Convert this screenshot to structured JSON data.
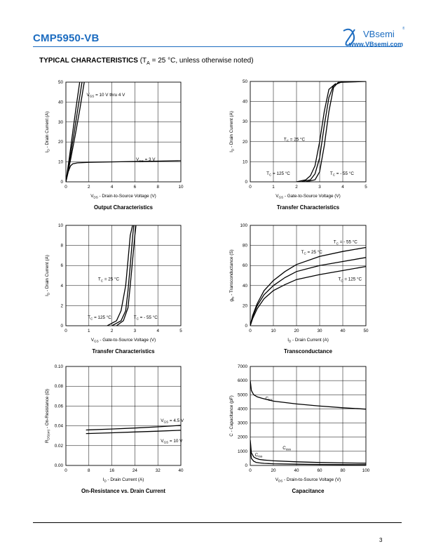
{
  "header": {
    "part_number": "CMP5950-VB",
    "logo_brand": "VBsemi",
    "logo_url": "www.VBsemi.com"
  },
  "section": {
    "title": "TYPICAL CHARACTERISTICS",
    "condition_open": " (T",
    "condition_sub": "A",
    "condition_rest": " = 25 °C, unless otherwise noted)"
  },
  "page_number": "3",
  "chart_data": [
    {
      "id": "output",
      "type": "line",
      "title": "Output Characteristics",
      "xlabel": "V_DS - Drain-to-Source Voltage (V)",
      "ylabel": "I_D - Drain Current (A)",
      "xlim": [
        0,
        10
      ],
      "ylim": [
        0,
        50
      ],
      "xticks": [
        "0",
        "2",
        "4",
        "6",
        "8",
        "10"
      ],
      "yticks": [
        "0",
        "10",
        "20",
        "30",
        "40",
        "50"
      ],
      "grid": true,
      "series": [
        {
          "name": "V_GS = 10 V thru 4 V",
          "x": [
            0,
            0.3,
            0.6,
            0.9,
            1.2
          ],
          "y": [
            0,
            12,
            25,
            38,
            50
          ]
        },
        {
          "name": "V_GS = 10 V thru 4 V",
          "x": [
            0,
            0.35,
            0.7,
            1.05,
            1.4
          ],
          "y": [
            0,
            11.5,
            24,
            37,
            50
          ]
        },
        {
          "name": "V_GS = 10 V thru 4 V",
          "x": [
            0,
            0.4,
            0.8,
            1.2,
            1.6
          ],
          "y": [
            0,
            11,
            23,
            36,
            50
          ]
        },
        {
          "name": "V_GS = 3 V",
          "x": [
            0,
            0.2,
            0.4,
            0.6,
            1,
            2,
            4,
            6,
            8,
            10
          ],
          "y": [
            0,
            5,
            8,
            9,
            9.5,
            9.8,
            10,
            10.2,
            10.4,
            10.6
          ]
        }
      ],
      "annotations": [
        {
          "text_main": "V",
          "text_sub": "GS",
          "text_rest": " = 10 V thru 4 V",
          "x": 1.8,
          "y": 43
        },
        {
          "text_main": "V",
          "text_sub": "GS",
          "text_rest": " = 3 V",
          "x": 6.1,
          "y": 10.5
        }
      ]
    },
    {
      "id": "transfer1",
      "type": "line",
      "title": "Transfer Characteristics",
      "xlabel": "V_GS - Gate-to-Source Voltage (V)",
      "ylabel": "I_D - Drain Current (A)",
      "xlim": [
        0,
        5
      ],
      "ylim": [
        0,
        50
      ],
      "xticks": [
        "0",
        "1",
        "2",
        "3",
        "4",
        "5"
      ],
      "yticks": [
        "0",
        "10",
        "20",
        "30",
        "40",
        "50"
      ],
      "grid": true,
      "series": [
        {
          "name": "T_C = 125 °C",
          "x": [
            2.0,
            2.4,
            2.6,
            2.8,
            3.0,
            3.2,
            3.4,
            3.7
          ],
          "y": [
            0,
            1,
            3,
            8,
            20,
            35,
            46,
            49
          ]
        },
        {
          "name": "T_C = 25 °C",
          "x": [
            2.2,
            2.6,
            2.8,
            3.0,
            3.2,
            3.4,
            3.6,
            4.0
          ],
          "y": [
            0,
            1,
            4,
            12,
            28,
            42,
            48,
            50
          ]
        },
        {
          "name": "T_C = - 55 °C",
          "x": [
            2.4,
            2.8,
            3.0,
            3.2,
            3.4,
            3.6,
            3.8,
            5.0
          ],
          "y": [
            0,
            1,
            5,
            18,
            35,
            47,
            49.5,
            50
          ]
        }
      ],
      "annotations": [
        {
          "text_main": "T",
          "text_sub": "C",
          "text_rest": " = 25 °C",
          "x": 1.45,
          "y": 20.5
        },
        {
          "text_main": "T",
          "text_sub": "C",
          "text_rest": " = 125 °C",
          "x": 0.7,
          "y": 3.5
        },
        {
          "text_main": "T",
          "text_sub": "C",
          "text_rest": " = - 55 °C",
          "x": 3.45,
          "y": 3.5
        }
      ]
    },
    {
      "id": "transfer2",
      "type": "line",
      "title": "Transfer Characteristics",
      "xlabel": "V_GS - Gate-to-Source Voltage (V)",
      "ylabel": "I_D - Drain Current (A)",
      "xlim": [
        0,
        5
      ],
      "ylim": [
        0,
        10
      ],
      "xticks": [
        "0",
        "1",
        "2",
        "3",
        "4",
        "5"
      ],
      "yticks": [
        "0",
        "2",
        "4",
        "6",
        "8",
        "10"
      ],
      "grid": true,
      "series": [
        {
          "name": "T_C = 125 °C",
          "x": [
            1.8,
            2.2,
            2.4,
            2.6,
            2.7,
            2.8,
            2.9
          ],
          "y": [
            0,
            0.5,
            1.5,
            4,
            6.5,
            9,
            10
          ]
        },
        {
          "name": "T_C = 25 °C",
          "x": [
            2.0,
            2.4,
            2.6,
            2.7,
            2.8,
            2.9,
            2.95
          ],
          "y": [
            0,
            0.5,
            1.5,
            3.5,
            6,
            8.8,
            10
          ]
        },
        {
          "name": "T_C = - 55 °C",
          "x": [
            2.2,
            2.5,
            2.7,
            2.8,
            2.9,
            3.0,
            3.05
          ],
          "y": [
            0,
            0.5,
            1.8,
            4,
            6.5,
            9,
            10
          ]
        }
      ],
      "annotations": [
        {
          "text_main": "T",
          "text_sub": "C",
          "text_rest": " = 25 °C",
          "x": 1.4,
          "y": 4.5
        },
        {
          "text_main": "T",
          "text_sub": "C",
          "text_rest": " = 125 °C",
          "x": 0.95,
          "y": 0.7
        },
        {
          "text_main": "T",
          "text_sub": "C",
          "text_rest": " = - 55 °C",
          "x": 2.95,
          "y": 0.7
        }
      ]
    },
    {
      "id": "transconductance",
      "type": "line",
      "title": "Transconductance",
      "xlabel": "I_D - Drain Current (A)",
      "ylabel": "g_fs - Transconductance (S)",
      "xlim": [
        0,
        50
      ],
      "ylim": [
        0,
        100
      ],
      "xticks": [
        "0",
        "10",
        "20",
        "30",
        "40",
        "50"
      ],
      "yticks": [
        "0",
        "20",
        "40",
        "60",
        "80",
        "100"
      ],
      "grid": true,
      "series": [
        {
          "name": "T_C = - 55 °C",
          "x": [
            0,
            1,
            3,
            6,
            10,
            15,
            20,
            30,
            40,
            50
          ],
          "y": [
            0,
            10,
            22,
            35,
            45,
            54,
            61,
            69,
            74,
            78
          ]
        },
        {
          "name": "T_C = 25 °C",
          "x": [
            0,
            1,
            3,
            6,
            10,
            15,
            20,
            30,
            40,
            50
          ],
          "y": [
            0,
            9,
            20,
            31,
            40,
            48,
            54,
            60,
            64,
            68
          ]
        },
        {
          "name": "T_C = 125 °C",
          "x": [
            0,
            1,
            3,
            6,
            10,
            15,
            20,
            30,
            40,
            50
          ],
          "y": [
            0,
            7,
            17,
            27,
            35,
            41,
            46,
            51,
            55,
            59
          ]
        }
      ],
      "annotations": [
        {
          "text_main": "T",
          "text_sub": "C",
          "text_rest": " = - 55 °C",
          "x": 36,
          "y": 82
        },
        {
          "text_main": "T",
          "text_sub": "C",
          "text_rest": " = 25 °C",
          "x": 22,
          "y": 72
        },
        {
          "text_main": "T",
          "text_sub": "C",
          "text_rest": " = 125 °C",
          "x": 38,
          "y": 45
        }
      ]
    },
    {
      "id": "onres",
      "type": "line",
      "title": "On-Resistance vs. Drain Current",
      "xlabel": "I_D - Drain Current (A)",
      "ylabel": "R_DS(on) - On-Resistance (Ω)",
      "xlim": [
        0,
        40
      ],
      "ylim": [
        0,
        0.1
      ],
      "xticks": [
        "0",
        "8",
        "16",
        "24",
        "32",
        "40"
      ],
      "yticks": [
        "0.00",
        "0.02",
        "0.04",
        "0.06",
        "0.08",
        "0.10"
      ],
      "grid": true,
      "series": [
        {
          "name": "V_GS = 4.5 V",
          "x": [
            7,
            16,
            24,
            32,
            40
          ],
          "y": [
            0.0358,
            0.0368,
            0.0378,
            0.039,
            0.0405
          ]
        },
        {
          "name": "V_GS = 10 V",
          "x": [
            7,
            16,
            24,
            32,
            40
          ],
          "y": [
            0.0322,
            0.033,
            0.0338,
            0.0346,
            0.0355
          ]
        }
      ],
      "annotations": [
        {
          "text_main": "V",
          "text_sub": "GS",
          "text_rest": " = 4.5 V",
          "x": 33,
          "y": 0.0441
        },
        {
          "text_main": "V",
          "text_sub": "GS",
          "text_rest": " = 10 V",
          "x": 33,
          "y": 0.0233
        }
      ]
    },
    {
      "id": "capacitance",
      "type": "line",
      "title": "Capacitance",
      "xlabel": "V_DS - Drain-to-Source Voltage (V)",
      "ylabel": "C - Capacitance (pF)",
      "xlim": [
        0,
        100
      ],
      "ylim": [
        0,
        7000
      ],
      "xticks": [
        "0",
        "20",
        "40",
        "60",
        "80",
        "100"
      ],
      "yticks": [
        "0",
        "1000",
        "2000",
        "3000",
        "4000",
        "5000",
        "6000",
        "7000"
      ],
      "grid": true,
      "series": [
        {
          "name": "C_iss",
          "x": [
            0,
            1,
            3,
            6,
            10,
            20,
            40,
            60,
            80,
            100
          ],
          "y": [
            6000,
            5300,
            5000,
            4850,
            4750,
            4550,
            4350,
            4200,
            4080,
            3980
          ]
        },
        {
          "name": "C_oss",
          "x": [
            0,
            1,
            3,
            5,
            8,
            12,
            20,
            40,
            60,
            80,
            100
          ],
          "y": [
            1800,
            900,
            600,
            500,
            420,
            380,
            330,
            260,
            210,
            180,
            160
          ]
        },
        {
          "name": "C_rss",
          "x": [
            0,
            1,
            3,
            5,
            8,
            12,
            20,
            40,
            60,
            80,
            100
          ],
          "y": [
            1200,
            500,
            300,
            220,
            180,
            150,
            120,
            90,
            70,
            60,
            55
          ]
        }
      ],
      "annotations": [
        {
          "text_main": "C",
          "text_sub": "iss",
          "text_rest": "",
          "x": 13,
          "y": 4650
        },
        {
          "text_main": "C",
          "text_sub": "oss",
          "text_rest": "",
          "x": 28,
          "y": 1150
        },
        {
          "text_main": "C",
          "text_sub": "rss",
          "text_rest": "",
          "x": 4,
          "y": 650
        }
      ]
    }
  ]
}
